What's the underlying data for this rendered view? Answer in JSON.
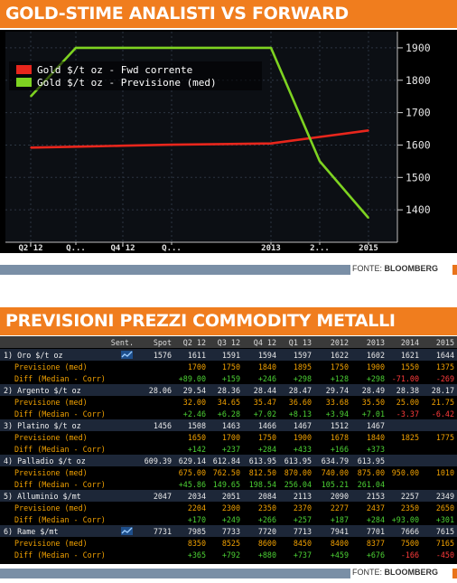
{
  "top_title": "GOLD-STIME ANALISTI VS FORWARD",
  "bottom_title": "PREVISIONI PREZZI COMMODITY METALLI",
  "source_label": "FONTE:",
  "source_name": "BLOOMBERG",
  "colors": {
    "banner": "#f07d1e",
    "series_fwd": "#e8261c",
    "series_prev": "#7ed321",
    "positive": "#4cd134",
    "negative": "#ff3b3b",
    "label_orange": "#f0a000"
  },
  "chart_data": [
    {
      "type": "line",
      "title": "",
      "x": [
        "Q2'12",
        "Q3'12",
        "Q4'12",
        "Q1'13",
        "2013",
        "2014",
        "2015"
      ],
      "x_tick_labels": [
        "Q2'12",
        "Q...",
        "Q4'12",
        "Q...",
        "2013",
        "2...",
        "2015"
      ],
      "ylim": [
        1300,
        1950
      ],
      "y_ticks": [
        1400,
        1500,
        1600,
        1700,
        1800,
        1900
      ],
      "y_axis_side": "right",
      "legend_position": "top-left",
      "grid": true,
      "series": [
        {
          "name": "Gold $/t oz - Fwd corrente",
          "color": "#e8261c",
          "values": [
            1592,
            1595,
            1598,
            1601,
            1605,
            1625,
            1645
          ]
        },
        {
          "name": "Gold $/t oz - Previsione (med)",
          "color": "#7ed321",
          "values": [
            1750,
            1900,
            1900,
            1900,
            1900,
            1550,
            1375
          ]
        }
      ]
    },
    {
      "type": "table",
      "columns": [
        "",
        "Sent.",
        "Spot",
        "Q2 12",
        "Q3 12",
        "Q4 12",
        "Q1 13",
        "2012",
        "2013",
        "2014",
        "2015"
      ],
      "rows": [
        {
          "kind": "main",
          "label": "1) Oro $/t oz",
          "icon": true,
          "spot": "1576",
          "vals": [
            "1611",
            "1591",
            "1594",
            "1597",
            "1622",
            "1602",
            "1621",
            "1644"
          ]
        },
        {
          "kind": "sub",
          "label": "Previsione (med)",
          "spot": "",
          "vals": [
            "1700",
            "1750",
            "1840",
            "1895",
            "1750",
            "1900",
            "1550",
            "1375"
          ]
        },
        {
          "kind": "diff",
          "label": "Diff (Median - Corr)",
          "spot": "",
          "vals": [
            "+89.00",
            "+159",
            "+246",
            "+298",
            "+128",
            "+298",
            "-71.00",
            "-269"
          ]
        },
        {
          "kind": "main",
          "label": "2) Argento $/t oz",
          "icon": false,
          "spot": "28.06",
          "vals": [
            "29.54",
            "28.36",
            "28.44",
            "28.47",
            "29.74",
            "28.49",
            "28.38",
            "28.17"
          ]
        },
        {
          "kind": "sub",
          "label": "Previsione (med)",
          "spot": "",
          "vals": [
            "32.00",
            "34.65",
            "35.47",
            "36.60",
            "33.68",
            "35.50",
            "25.00",
            "21.75"
          ]
        },
        {
          "kind": "diff",
          "label": "Diff (Median - Corr)",
          "spot": "",
          "vals": [
            "+2.46",
            "+6.28",
            "+7.02",
            "+8.13",
            "+3.94",
            "+7.01",
            "-3.37",
            "-6.42"
          ]
        },
        {
          "kind": "main",
          "label": "3) Platino $/t oz",
          "icon": false,
          "spot": "1456",
          "vals": [
            "1508",
            "1463",
            "1466",
            "1467",
            "1512",
            "1467",
            "",
            ""
          ]
        },
        {
          "kind": "sub",
          "label": "Previsione (med)",
          "spot": "",
          "vals": [
            "1650",
            "1700",
            "1750",
            "1900",
            "1678",
            "1840",
            "1825",
            "1775"
          ]
        },
        {
          "kind": "diff",
          "label": "Diff (Median - Corr)",
          "spot": "",
          "vals": [
            "+142",
            "+237",
            "+284",
            "+433",
            "+166",
            "+373",
            "",
            ""
          ]
        },
        {
          "kind": "main",
          "label": "4) Palladio $/t oz",
          "icon": false,
          "spot": "609.39",
          "vals": [
            "629.14",
            "612.84",
            "613.95",
            "613.95",
            "634.79",
            "613.95",
            "",
            ""
          ]
        },
        {
          "kind": "sub",
          "label": "Previsione (med)",
          "spot": "",
          "vals": [
            "675.00",
            "762.50",
            "812.50",
            "870.00",
            "740.00",
            "875.00",
            "950.00",
            "1010"
          ]
        },
        {
          "kind": "diff",
          "label": "Diff (Median - Corr)",
          "spot": "",
          "vals": [
            "+45.86",
            "149.65",
            "198.54",
            "256.04",
            "105.21",
            "261.04",
            "",
            ""
          ]
        },
        {
          "kind": "main",
          "label": "5) Alluminio $/mt",
          "icon": false,
          "spot": "2047",
          "vals": [
            "2034",
            "2051",
            "2084",
            "2113",
            "2090",
            "2153",
            "2257",
            "2349"
          ]
        },
        {
          "kind": "sub",
          "label": "Previsione (med)",
          "spot": "",
          "vals": [
            "2204",
            "2300",
            "2350",
            "2370",
            "2277",
            "2437",
            "2350",
            "2650"
          ]
        },
        {
          "kind": "diff",
          "label": "Diff (Median - Corr)",
          "spot": "",
          "vals": [
            "+170",
            "+249",
            "+266",
            "+257",
            "+187",
            "+284",
            "+93.00",
            "+301"
          ]
        },
        {
          "kind": "main",
          "label": "6) Rame $/mt",
          "icon": true,
          "spot": "7731",
          "vals": [
            "7985",
            "7733",
            "7720",
            "7713",
            "7941",
            "7701",
            "7666",
            "7615"
          ]
        },
        {
          "kind": "sub",
          "label": "Previsione (med)",
          "spot": "",
          "vals": [
            "8350",
            "8525",
            "8600",
            "8450",
            "8400",
            "8377",
            "7500",
            "7165"
          ]
        },
        {
          "kind": "diff",
          "label": "Diff (Median - Corr)",
          "spot": "",
          "vals": [
            "+365",
            "+792",
            "+880",
            "+737",
            "+459",
            "+676",
            "-166",
            "-450"
          ]
        }
      ]
    }
  ]
}
